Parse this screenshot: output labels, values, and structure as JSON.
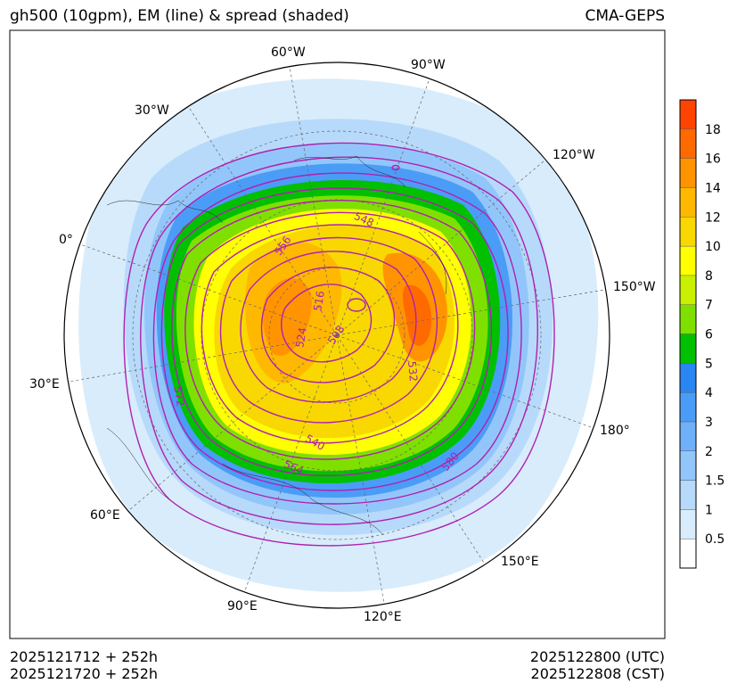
{
  "header": {
    "title": "gh500 (10gpm), EM (line) & spread (shaded)",
    "model": "CMA-GEPS"
  },
  "footer": {
    "init_utc": "2025121712 + 252h",
    "init_cst": "2025121720 + 252h",
    "valid_utc": "2025122800 (UTC)",
    "valid_cst": "2025122808 (CST)"
  },
  "longitude_labels": [
    "60°W",
    "90°W",
    "30°W",
    "120°W",
    "0°",
    "150°W",
    "30°E",
    "180°",
    "60°E",
    "150°E",
    "90°E",
    "120°E"
  ],
  "contour_labels": [
    "548",
    "556",
    "516",
    "524",
    "508",
    "532",
    "572",
    "540",
    "564",
    "580"
  ],
  "colorbar": {
    "labels": [
      "0.5",
      "1",
      "1.5",
      "2",
      "3",
      "4",
      "5",
      "6",
      "7",
      "8",
      "10",
      "12",
      "14",
      "16",
      "18"
    ],
    "colors": [
      "#ffffff",
      "#d8ecfc",
      "#b7dafb",
      "#92c6fa",
      "#6eb1f8",
      "#4b9cf6",
      "#2a86f2",
      "#00c000",
      "#7fe000",
      "#c8f000",
      "#ffff00",
      "#f8d800",
      "#ffb800",
      "#ff9400",
      "#ff6a00",
      "#ff4400"
    ]
  }
}
